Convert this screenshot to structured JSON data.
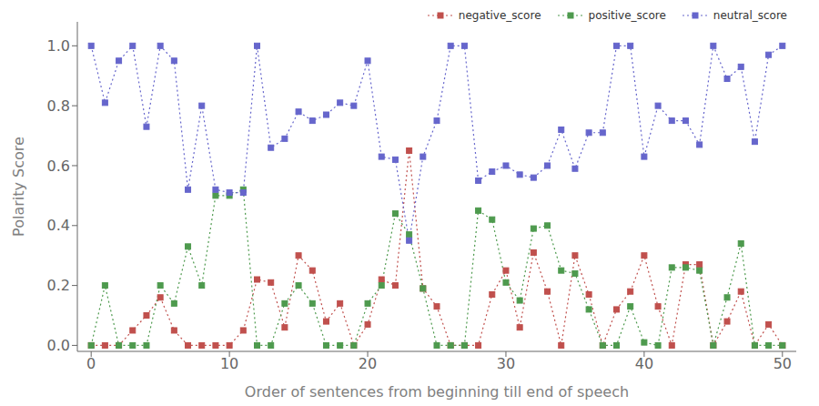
{
  "chart_data": {
    "type": "line",
    "xlabel": "Order of sentences from beginning till end of speech",
    "ylabel": "Polarity Score",
    "x": [
      0,
      1,
      2,
      3,
      4,
      5,
      6,
      7,
      8,
      9,
      10,
      11,
      12,
      13,
      14,
      15,
      16,
      17,
      18,
      19,
      20,
      21,
      22,
      23,
      24,
      25,
      26,
      27,
      28,
      29,
      30,
      31,
      32,
      33,
      34,
      35,
      36,
      37,
      38,
      39,
      40,
      41,
      42,
      43,
      44,
      45,
      46,
      47,
      48,
      49,
      50
    ],
    "series": [
      {
        "name": "negative_score",
        "color": "#c0504d",
        "values": [
          0.0,
          0.0,
          0.0,
          0.05,
          0.1,
          0.16,
          0.05,
          0.0,
          0.0,
          0.0,
          0.0,
          0.05,
          0.22,
          0.21,
          0.06,
          0.3,
          0.25,
          0.08,
          0.14,
          0.0,
          0.07,
          0.22,
          0.2,
          0.65,
          0.19,
          0.13,
          0.0,
          0.0,
          0.0,
          0.17,
          0.25,
          0.06,
          0.31,
          0.18,
          0.0,
          0.3,
          0.17,
          0.0,
          0.12,
          0.18,
          0.3,
          0.13,
          0.0,
          0.27,
          0.27,
          0.0,
          0.08,
          0.18,
          0.0,
          0.07,
          0.0
        ]
      },
      {
        "name": "positive_score",
        "color": "#4e9a4e",
        "values": [
          0.0,
          0.2,
          0.0,
          0.0,
          0.0,
          0.2,
          0.14,
          0.33,
          0.2,
          0.5,
          0.5,
          0.52,
          0.0,
          0.0,
          0.14,
          0.2,
          0.14,
          0.0,
          0.0,
          0.0,
          0.14,
          0.2,
          0.44,
          0.37,
          0.19,
          0.0,
          0.0,
          0.0,
          0.45,
          0.42,
          0.21,
          0.15,
          0.39,
          0.4,
          0.25,
          0.24,
          0.12,
          0.0,
          0.0,
          0.13,
          0.01,
          0.0,
          0.26,
          0.26,
          0.25,
          0.0,
          0.16,
          0.34,
          0.0,
          0.0,
          0.0
        ]
      },
      {
        "name": "neutral_score",
        "color": "#6666cc",
        "values": [
          1.0,
          0.81,
          0.95,
          1.0,
          0.73,
          1.0,
          0.95,
          0.52,
          0.8,
          0.52,
          0.51,
          0.51,
          1.0,
          0.66,
          0.69,
          0.78,
          0.75,
          0.77,
          0.81,
          0.8,
          0.95,
          0.63,
          0.62,
          0.35,
          0.63,
          0.75,
          1.0,
          1.0,
          0.55,
          0.58,
          0.6,
          0.57,
          0.56,
          0.6,
          0.72,
          0.59,
          0.71,
          0.71,
          1.0,
          1.0,
          0.63,
          0.8,
          0.75,
          0.75,
          0.67,
          1.0,
          0.89,
          0.93,
          0.68,
          0.97,
          1.0
        ]
      }
    ],
    "xlim": [
      -1,
      51
    ],
    "ylim": [
      -0.02,
      1.08
    ],
    "xticks": [
      0,
      10,
      20,
      30,
      40,
      50
    ],
    "yticks": [
      {
        "value": 0.0,
        "label": "0.0"
      },
      0.2,
      0.4,
      0.6,
      0.8,
      {
        "value": 1.0,
        "label": "1.0"
      }
    ],
    "marker": "square",
    "line_style": "dotted",
    "legend": "upper right",
    "grid": false
  }
}
